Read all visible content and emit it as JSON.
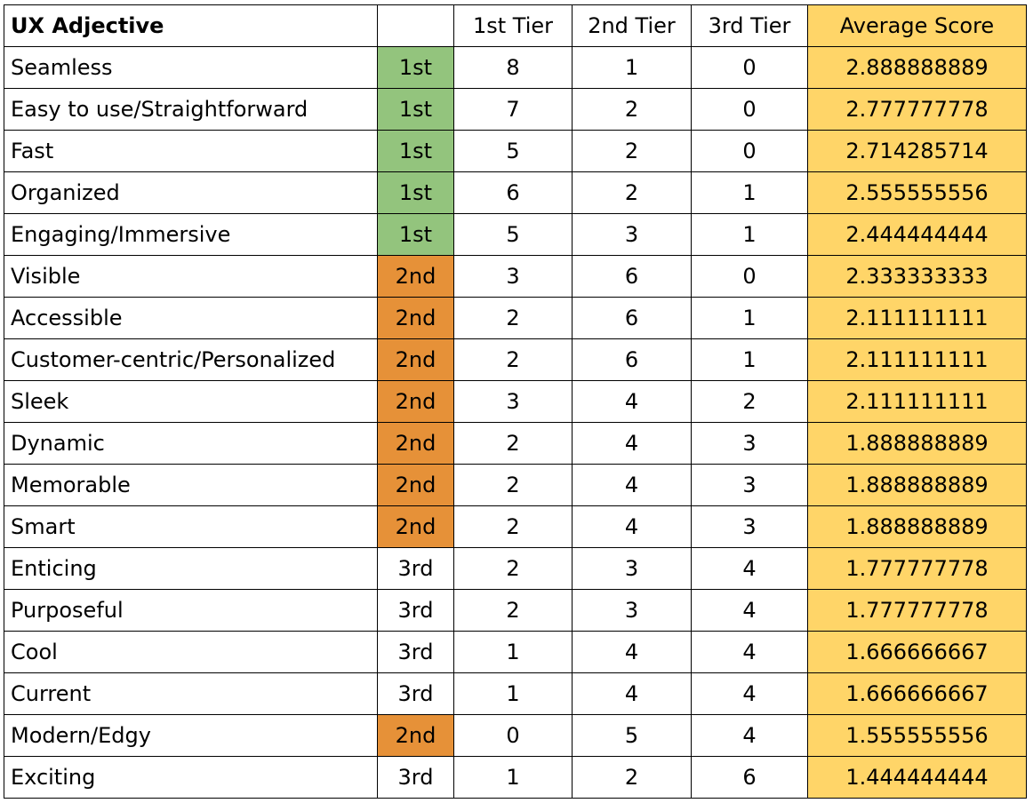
{
  "table": {
    "headers": {
      "adjective": "UX Adjective",
      "tier": "",
      "tier1": "1st Tier",
      "tier2": "2nd Tier",
      "tier3": "3rd Tier",
      "average": "Average Score"
    },
    "colors": {
      "tier_1st": "#93c47d",
      "tier_2nd": "#e69138",
      "tier_3rd": "#ffffff",
      "average_fill": "#ffd568"
    },
    "rows": [
      {
        "adjective": "Seamless",
        "tier": "1st",
        "t1": "8",
        "t2": "1",
        "t3": "0",
        "avg": "2.888888889"
      },
      {
        "adjective": "Easy to use/Straightforward",
        "tier": "1st",
        "t1": "7",
        "t2": "2",
        "t3": "0",
        "avg": "2.777777778"
      },
      {
        "adjective": "Fast",
        "tier": "1st",
        "t1": "5",
        "t2": "2",
        "t3": "0",
        "avg": "2.714285714"
      },
      {
        "adjective": "Organized",
        "tier": "1st",
        "t1": "6",
        "t2": "2",
        "t3": "1",
        "avg": "2.555555556"
      },
      {
        "adjective": "Engaging/Immersive",
        "tier": "1st",
        "t1": "5",
        "t2": "3",
        "t3": "1",
        "avg": "2.444444444"
      },
      {
        "adjective": "Visible",
        "tier": "2nd",
        "t1": "3",
        "t2": "6",
        "t3": "0",
        "avg": "2.333333333"
      },
      {
        "adjective": "Accessible",
        "tier": "2nd",
        "t1": "2",
        "t2": "6",
        "t3": "1",
        "avg": "2.111111111"
      },
      {
        "adjective": "Customer-centric/Personalized",
        "tier": "2nd",
        "t1": "2",
        "t2": "6",
        "t3": "1",
        "avg": "2.111111111"
      },
      {
        "adjective": "Sleek",
        "tier": "2nd",
        "t1": "3",
        "t2": "4",
        "t3": "2",
        "avg": "2.111111111"
      },
      {
        "adjective": "Dynamic",
        "tier": "2nd",
        "t1": "2",
        "t2": "4",
        "t3": "3",
        "avg": "1.888888889"
      },
      {
        "adjective": "Memorable",
        "tier": "2nd",
        "t1": "2",
        "t2": "4",
        "t3": "3",
        "avg": "1.888888889"
      },
      {
        "adjective": "Smart",
        "tier": "2nd",
        "t1": "2",
        "t2": "4",
        "t3": "3",
        "avg": "1.888888889"
      },
      {
        "adjective": "Enticing",
        "tier": "3rd",
        "t1": "2",
        "t2": "3",
        "t3": "4",
        "avg": "1.777777778"
      },
      {
        "adjective": "Purposeful",
        "tier": "3rd",
        "t1": "2",
        "t2": "3",
        "t3": "4",
        "avg": "1.777777778"
      },
      {
        "adjective": "Cool",
        "tier": "3rd",
        "t1": "1",
        "t2": "4",
        "t3": "4",
        "avg": "1.666666667"
      },
      {
        "adjective": "Current",
        "tier": "3rd",
        "t1": "1",
        "t2": "4",
        "t3": "4",
        "avg": "1.666666667"
      },
      {
        "adjective": "Modern/Edgy",
        "tier": "2nd",
        "t1": "0",
        "t2": "5",
        "t3": "4",
        "avg": "1.555555556"
      },
      {
        "adjective": "Exciting",
        "tier": "3rd",
        "t1": "1",
        "t2": "2",
        "t3": "6",
        "avg": "1.444444444"
      }
    ]
  }
}
